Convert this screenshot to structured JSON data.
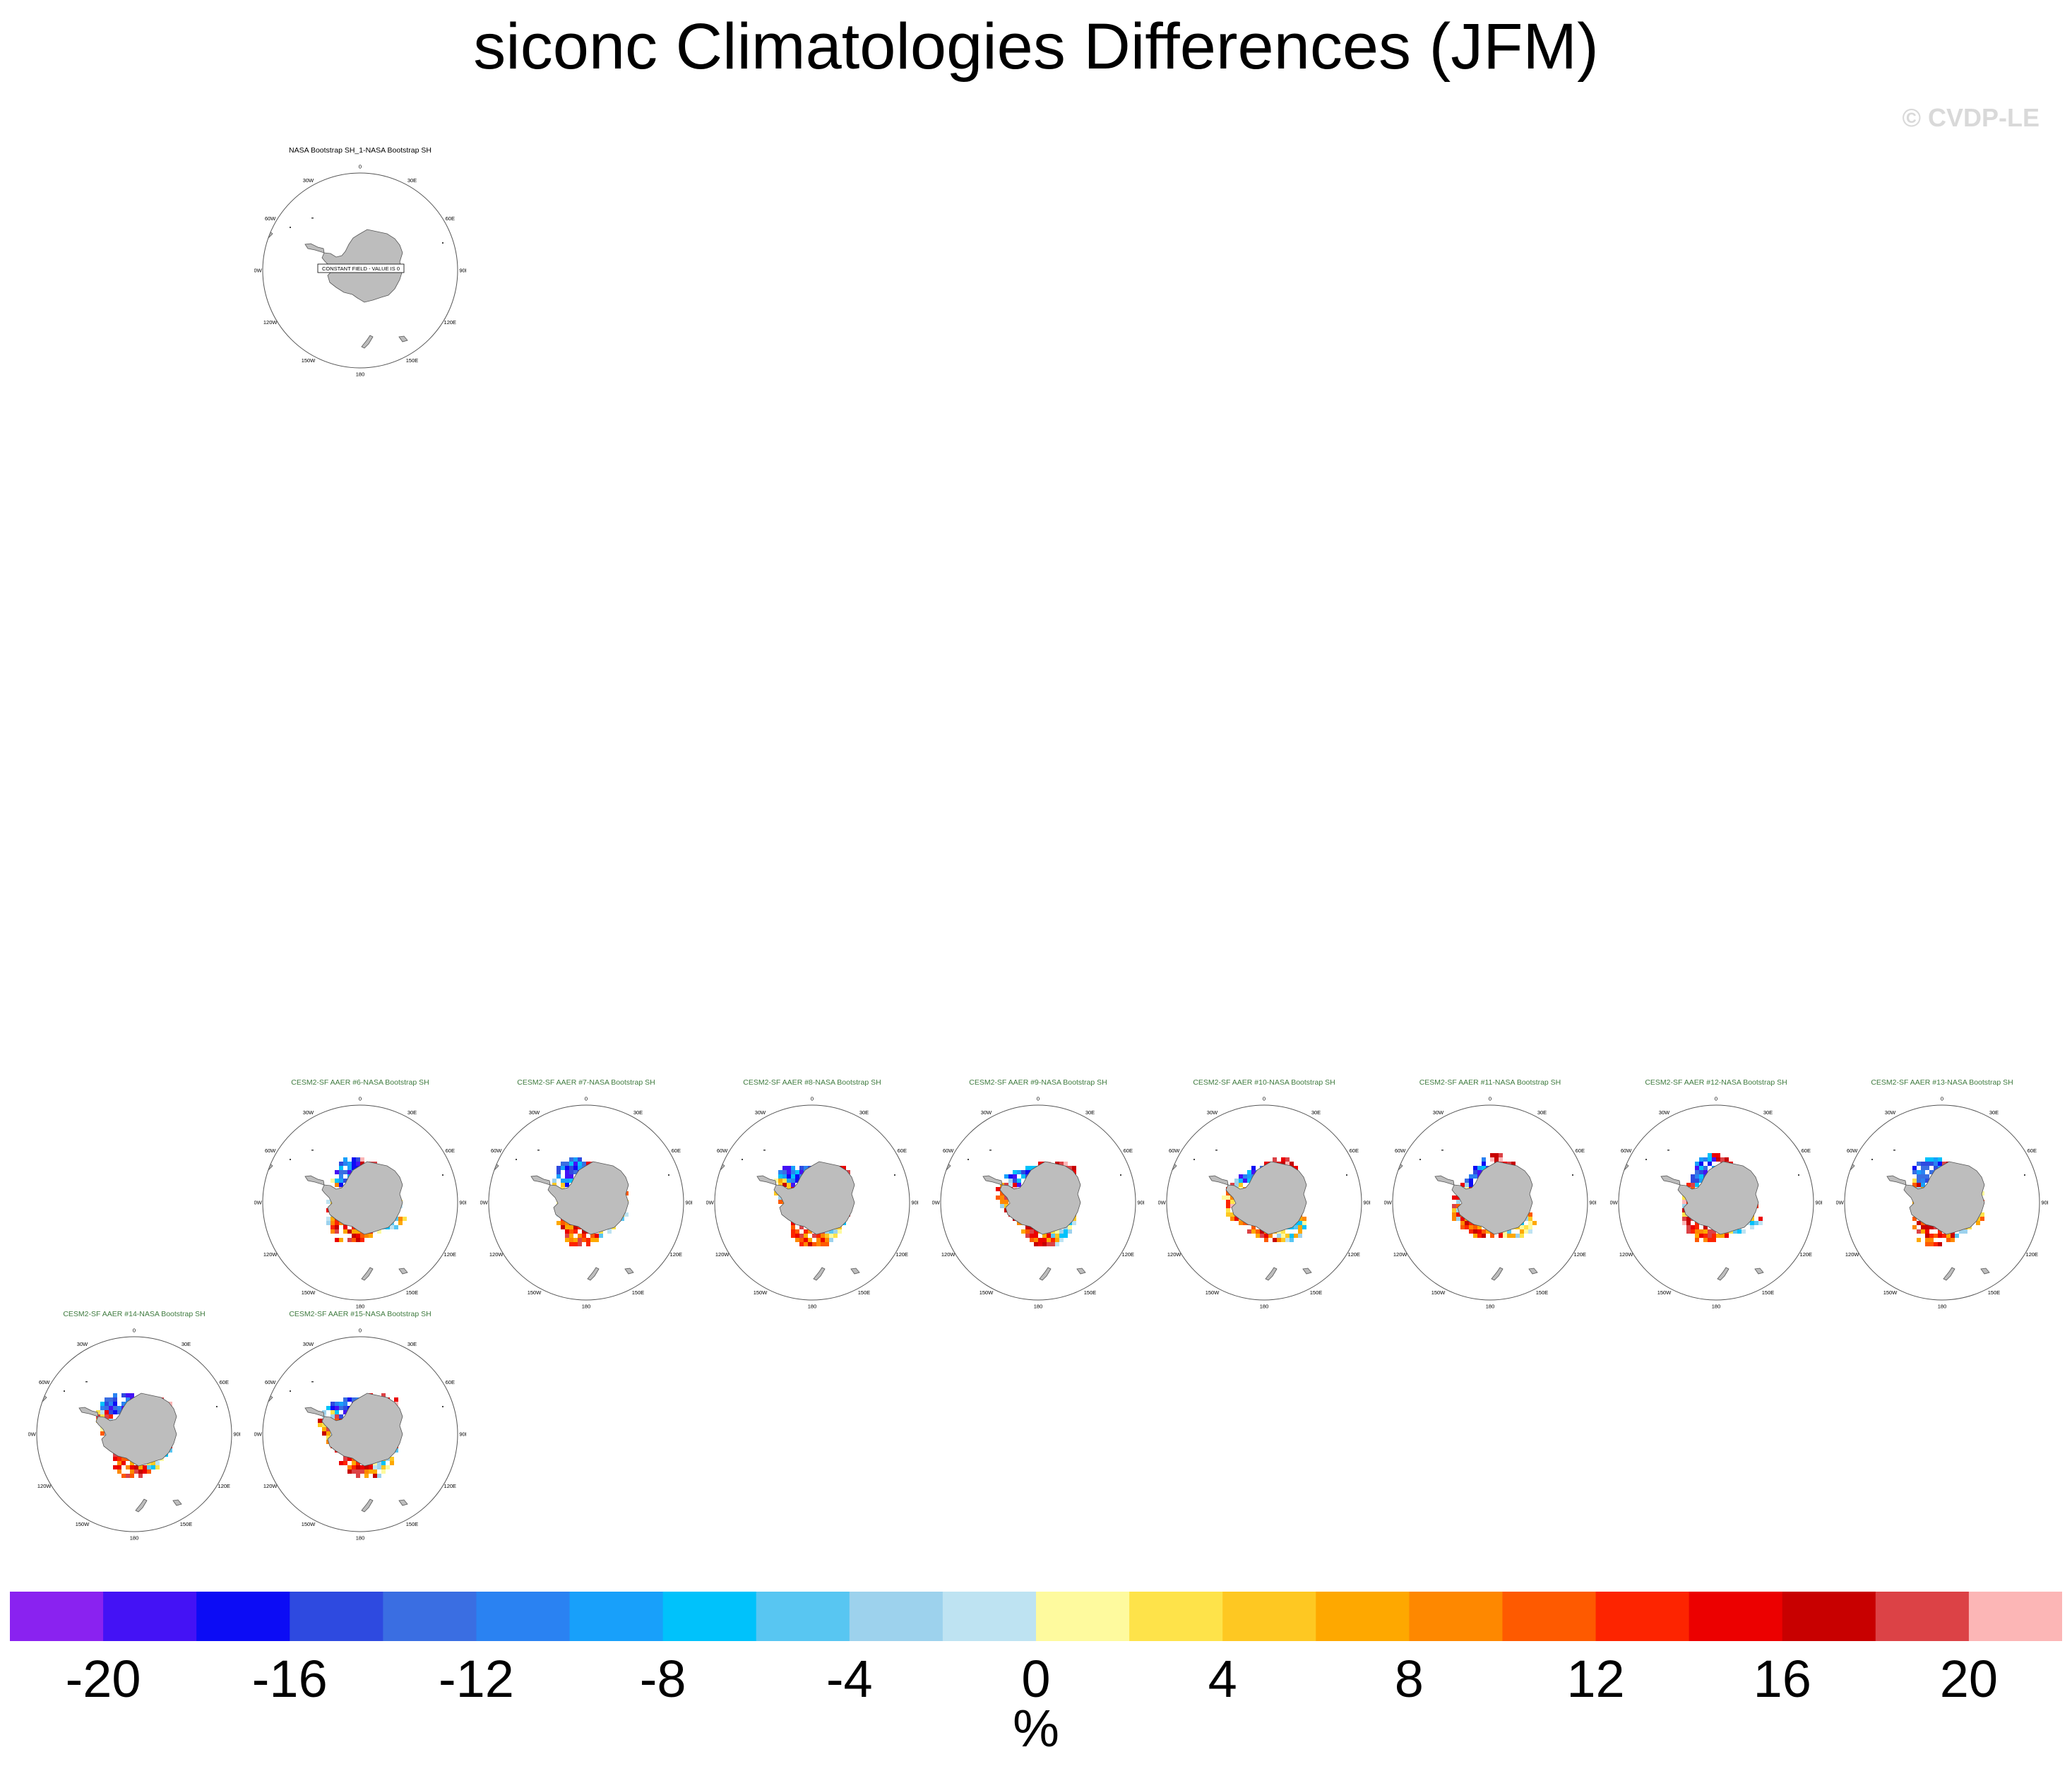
{
  "title": "siconc Climatologies Differences (JFM)",
  "watermark": "© CVDP-LE",
  "panels": [
    {
      "title": "NASA Bootstrap SH_1-NASA Bootstrap SH",
      "constant": true,
      "label": "CONSTANT FIELD - VALUE IS 0",
      "title_color": "#000000"
    },
    {
      "title": "CESM2-SF AAER #6-NASA Bootstrap SH",
      "constant": false,
      "title_color": "#3e7a3e"
    },
    {
      "title": "CESM2-SF AAER #7-NASA Bootstrap SH",
      "constant": false,
      "title_color": "#3e7a3e"
    },
    {
      "title": "CESM2-SF AAER #8-NASA Bootstrap SH",
      "constant": false,
      "title_color": "#3e7a3e"
    },
    {
      "title": "CESM2-SF AAER #9-NASA Bootstrap SH",
      "constant": false,
      "title_color": "#3e7a3e"
    },
    {
      "title": "CESM2-SF AAER #10-NASA Bootstrap SH",
      "constant": false,
      "title_color": "#3e7a3e"
    },
    {
      "title": "CESM2-SF AAER #11-NASA Bootstrap SH",
      "constant": false,
      "title_color": "#3e7a3e"
    },
    {
      "title": "CESM2-SF AAER #12-NASA Bootstrap SH",
      "constant": false,
      "title_color": "#3e7a3e"
    },
    {
      "title": "CESM2-SF AAER #13-NASA Bootstrap SH",
      "constant": false,
      "title_color": "#3e7a3e"
    },
    {
      "title": "CESM2-SF AAER #14-NASA Bootstrap SH",
      "constant": false,
      "title_color": "#3e7a3e"
    },
    {
      "title": "CESM2-SF AAER #15-NASA Bootstrap SH",
      "constant": false,
      "title_color": "#3e7a3e"
    }
  ],
  "lon_labels": [
    "0",
    "30E",
    "60E",
    "90E",
    "120E",
    "150E",
    "180",
    "150W",
    "120W",
    "90W",
    "60W",
    "30W"
  ],
  "chart_data": {
    "type": "heatmap",
    "projection": "south polar stereographic",
    "colorbar": {
      "unit": "%",
      "levels": [
        -22,
        -20,
        -18,
        -16,
        -14,
        -12,
        -10,
        -8,
        -6,
        -4,
        -2,
        0,
        2,
        4,
        6,
        8,
        10,
        12,
        14,
        16,
        18,
        20,
        22
      ],
      "colors": [
        "#8a22f0",
        "#4412f5",
        "#0c0cf5",
        "#2e4ae0",
        "#3a6ee2",
        "#2a82f2",
        "#18a0fa",
        "#00c2fb",
        "#58c6f2",
        "#9dd2ed",
        "#bee3f2",
        "#fefa9e",
        "#fee34a",
        "#fec822",
        "#fea800",
        "#fe8800",
        "#fe5a00",
        "#fd2400",
        "#ec0000",
        "#c80000",
        "#dc4246",
        "#fcb6b6"
      ],
      "tick_labels": [
        "-20",
        "-16",
        "-12",
        "-8",
        "-4",
        "0",
        "4",
        "8",
        "12",
        "16",
        "20"
      ]
    }
  }
}
